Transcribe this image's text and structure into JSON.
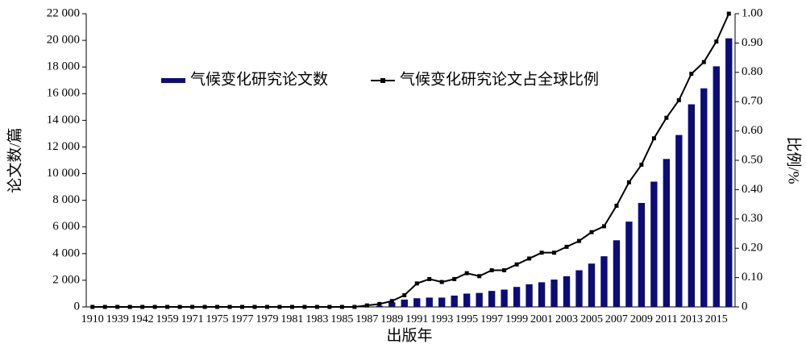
{
  "chart_data": {
    "type": "bar",
    "x_label": "出版年",
    "y_label": "论文数/篇",
    "y2_label": "比例/%",
    "categories": [
      "1910",
      null,
      "1939",
      null,
      "1942",
      null,
      "1959",
      null,
      "1971",
      null,
      "1975",
      null,
      "1977",
      null,
      "1979",
      null,
      "1981",
      null,
      "1983",
      null,
      "1985",
      null,
      "1987",
      null,
      "1989",
      null,
      "1991",
      null,
      "1993",
      null,
      "1995",
      null,
      "1997",
      null,
      "1999",
      null,
      "2001",
      null,
      "2003",
      null,
      "2005",
      null,
      "2007",
      null,
      "2009",
      null,
      "2011",
      null,
      "2013",
      null,
      "2015",
      null
    ],
    "series": [
      {
        "name": "气候变化研究论文数",
        "type": "bar",
        "color": "#0c0c78",
        "values": [
          0,
          0,
          0,
          0,
          0,
          0,
          0,
          0,
          0,
          0,
          0,
          0,
          0,
          0,
          0,
          0,
          0,
          0,
          0,
          0,
          10,
          10,
          30,
          80,
          350,
          550,
          650,
          700,
          700,
          850,
          1000,
          1050,
          1200,
          1300,
          1500,
          1700,
          1850,
          2050,
          2300,
          2750,
          3250,
          3800,
          5000,
          6400,
          7800,
          9400,
          11100,
          12900,
          15200,
          16400,
          18050,
          20150
        ]
      },
      {
        "name": "气候变化研究论文占全球比例",
        "type": "line",
        "axis": "y2",
        "color": "#000000",
        "values": [
          0,
          0,
          0,
          0,
          0,
          0,
          0,
          0,
          0,
          0,
          0,
          0,
          0,
          0,
          0,
          0,
          0,
          0,
          0,
          0,
          0,
          0,
          0.005,
          0.01,
          0.02,
          0.04,
          0.08,
          0.095,
          0.085,
          0.095,
          0.115,
          0.105,
          0.125,
          0.125,
          0.145,
          0.165,
          0.185,
          0.185,
          0.205,
          0.225,
          0.255,
          0.275,
          0.345,
          0.425,
          0.485,
          0.575,
          0.645,
          0.705,
          0.795,
          0.835,
          0.905,
          1.0
        ]
      }
    ],
    "ylim": [
      0,
      22000
    ],
    "yticks": [
      0,
      {
        "value": 2000,
        "label": "2 000"
      },
      {
        "value": 4000,
        "label": "4 000"
      },
      {
        "value": 6000,
        "label": "6 000"
      },
      {
        "value": 8000,
        "label": "8 000"
      },
      {
        "value": 10000,
        "label": "10 000"
      },
      {
        "value": 12000,
        "label": "12 000"
      },
      {
        "value": 14000,
        "label": "14 000"
      },
      {
        "value": 16000,
        "label": "16 000"
      },
      {
        "value": 18000,
        "label": "18 000"
      },
      {
        "value": 20000,
        "label": "20 000"
      },
      {
        "value": 22000,
        "label": "22 000"
      }
    ],
    "y2lim": [
      0,
      1
    ],
    "y2ticks": [
      0,
      {
        "value": 0.1,
        "label": "0.10"
      },
      {
        "value": 0.2,
        "label": "0.20"
      },
      {
        "value": 0.3,
        "label": "0.30"
      },
      {
        "value": 0.4,
        "label": "0.40"
      },
      {
        "value": 0.5,
        "label": "0.50"
      },
      {
        "value": 0.6,
        "label": "0.60"
      },
      {
        "value": 0.7,
        "label": "0.70"
      },
      {
        "value": 0.8,
        "label": "0.80"
      },
      {
        "value": 0.9,
        "label": "0.90"
      },
      {
        "value": 1,
        "label": "1.00"
      }
    ],
    "legend": "top-center"
  }
}
